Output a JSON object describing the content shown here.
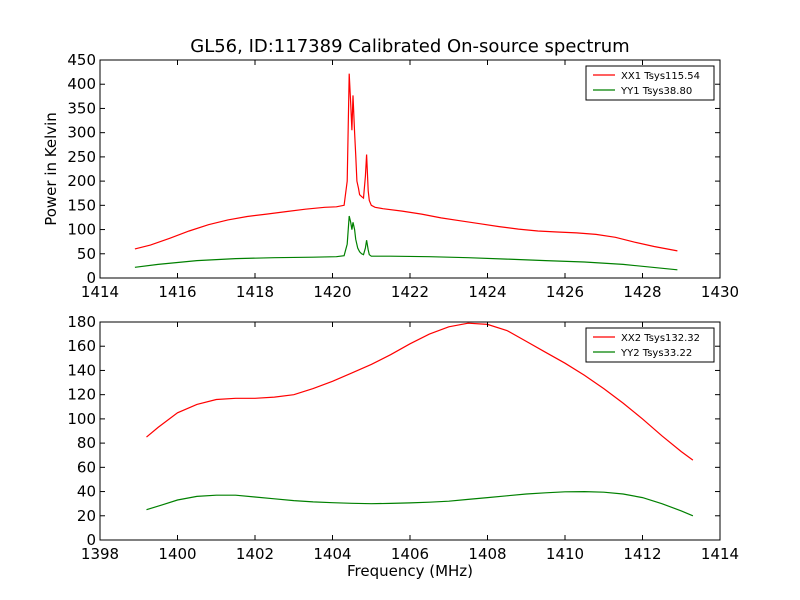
{
  "figure": {
    "title": "GL56, ID:117389 Calibrated On-source spectrum"
  },
  "chart_data": [
    {
      "type": "line",
      "title": "GL56, ID:117389 Calibrated On-source spectrum",
      "xlabel": "",
      "ylabel": "Power in Kelvin",
      "xlim": [
        1414,
        1430
      ],
      "ylim": [
        0,
        450
      ],
      "xticks": [
        1414,
        1416,
        1418,
        1420,
        1422,
        1424,
        1426,
        1428,
        1430
      ],
      "yticks": [
        0,
        50,
        100,
        150,
        200,
        250,
        300,
        350,
        400,
        450
      ],
      "grid": false,
      "legend_position": "top-right",
      "series": [
        {
          "name": "XX1 Tsys115.54",
          "color": "#ff0000",
          "x": [
            1414.9,
            1415.3,
            1415.8,
            1416.3,
            1416.8,
            1417.3,
            1417.8,
            1418.3,
            1418.8,
            1419.3,
            1419.8,
            1420.1,
            1420.3,
            1420.38,
            1420.43,
            1420.47,
            1420.5,
            1420.53,
            1420.57,
            1420.6,
            1420.63,
            1420.67,
            1420.7,
            1420.75,
            1420.8,
            1420.85,
            1420.88,
            1420.92,
            1420.95,
            1421.0,
            1421.1,
            1421.3,
            1421.8,
            1422.3,
            1422.8,
            1423.3,
            1423.8,
            1424.3,
            1424.8,
            1425.3,
            1425.8,
            1426.3,
            1426.8,
            1427.3,
            1427.8,
            1428.3,
            1428.9
          ],
          "values": [
            60,
            68,
            82,
            97,
            110,
            120,
            127,
            132,
            137,
            142,
            146,
            147,
            150,
            200,
            422,
            360,
            305,
            377,
            300,
            255,
            200,
            185,
            172,
            168,
            165,
            210,
            255,
            180,
            160,
            150,
            146,
            143,
            138,
            132,
            124,
            118,
            112,
            106,
            101,
            97,
            95,
            93,
            90,
            84,
            74,
            65,
            56
          ]
        },
        {
          "name": "YY1 Tsys38.80",
          "color": "#008000",
          "x": [
            1414.9,
            1415.5,
            1416.5,
            1417.5,
            1418.5,
            1419.5,
            1420.1,
            1420.3,
            1420.38,
            1420.43,
            1420.47,
            1420.5,
            1420.53,
            1420.57,
            1420.6,
            1420.65,
            1420.7,
            1420.75,
            1420.8,
            1420.85,
            1420.88,
            1420.92,
            1420.95,
            1421.0,
            1421.5,
            1422.5,
            1423.5,
            1424.5,
            1425.5,
            1426.5,
            1427.5,
            1428.9
          ],
          "values": [
            22,
            28,
            36,
            40,
            42,
            43,
            44,
            46,
            70,
            128,
            115,
            100,
            115,
            100,
            80,
            62,
            54,
            50,
            48,
            62,
            78,
            58,
            48,
            45,
            45,
            44,
            42,
            39,
            36,
            33,
            28,
            17
          ]
        }
      ]
    },
    {
      "type": "line",
      "title": "",
      "xlabel": "Frequency (MHz)",
      "ylabel": "",
      "xlim": [
        1398,
        1414
      ],
      "ylim": [
        0,
        180
      ],
      "xticks": [
        1398,
        1400,
        1402,
        1404,
        1406,
        1408,
        1410,
        1412,
        1414
      ],
      "yticks": [
        0,
        20,
        40,
        60,
        80,
        100,
        120,
        140,
        160,
        180
      ],
      "grid": false,
      "legend_position": "top-right",
      "series": [
        {
          "name": "XX2 Tsys132.32",
          "color": "#ff0000",
          "x": [
            1399.2,
            1399.5,
            1400.0,
            1400.5,
            1401.0,
            1401.5,
            1402.0,
            1402.5,
            1403.0,
            1403.5,
            1404.0,
            1404.5,
            1405.0,
            1405.5,
            1406.0,
            1406.5,
            1407.0,
            1407.5,
            1408.0,
            1408.5,
            1409.0,
            1409.5,
            1410.0,
            1410.5,
            1411.0,
            1411.5,
            1412.0,
            1412.5,
            1413.0,
            1413.3
          ],
          "values": [
            85,
            93,
            105,
            112,
            116,
            117,
            117,
            118,
            120,
            125,
            131,
            138,
            145,
            153,
            162,
            170,
            176,
            179,
            178,
            173,
            164,
            155,
            146,
            136,
            125,
            113,
            100,
            86,
            73,
            66
          ]
        },
        {
          "name": "YY2 Tsys33.22",
          "color": "#008000",
          "x": [
            1399.2,
            1399.6,
            1400.0,
            1400.5,
            1401.0,
            1401.5,
            1402.0,
            1402.5,
            1403.0,
            1403.5,
            1404.0,
            1404.5,
            1405.0,
            1405.5,
            1406.0,
            1406.5,
            1407.0,
            1407.5,
            1408.0,
            1408.5,
            1409.0,
            1409.5,
            1410.0,
            1410.5,
            1411.0,
            1411.5,
            1412.0,
            1412.5,
            1413.0,
            1413.3
          ],
          "values": [
            25,
            29,
            33,
            36,
            37,
            37,
            35.5,
            34,
            32.5,
            31.5,
            30.8,
            30.3,
            30,
            30.2,
            30.6,
            31.2,
            32,
            33.5,
            35,
            36.5,
            38,
            39,
            39.8,
            40,
            39.5,
            38,
            35,
            30,
            24,
            20
          ]
        }
      ]
    }
  ]
}
